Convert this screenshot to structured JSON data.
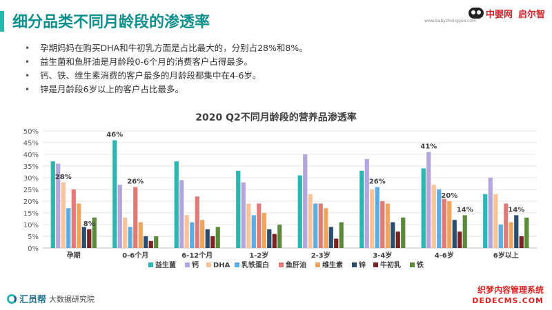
{
  "header": {
    "title": "细分品类不同月龄段的渗透率",
    "logo_a": "中婴网",
    "logo_url": "www.babyzhongguo.com",
    "logo_b": "启尔智"
  },
  "bullets": [
    "孕期妈妈在购买DHA和牛初乳方面是占比最大的，分别占28%和8%。",
    "益生菌和鱼肝油是月龄段0-6个月的消费客户占得最多。",
    "钙、铁、维生素消费的客户最多的月龄段都集中在4-6岁。",
    "锌是月龄段6岁以上的客户占比最多。"
  ],
  "chart_data": {
    "type": "bar",
    "title": "2020 Q2不同月龄段的营养品渗透率",
    "categories": [
      "孕期",
      "0-6个月",
      "6-12个月",
      "1-2岁",
      "2-3岁",
      "3-4岁",
      "4-6岁",
      "6岁以上"
    ],
    "ylim": [
      0,
      50
    ],
    "yticks": [
      "0%",
      "5%",
      "10%",
      "15%",
      "20%",
      "25%",
      "30%",
      "35%",
      "40%",
      "45%",
      "50%"
    ],
    "grid": true,
    "legend": "bottom",
    "series": [
      {
        "name": "益生菌",
        "color": "#2bb6b2",
        "values": [
          37,
          46,
          37,
          33,
          31,
          33,
          34,
          23
        ]
      },
      {
        "name": "钙",
        "color": "#b4a6dc",
        "values": [
          36,
          27,
          29,
          28,
          40,
          38,
          41,
          30
        ]
      },
      {
        "name": "DHA",
        "color": "#f9c49a",
        "values": [
          28,
          13,
          14,
          19,
          23,
          25,
          27,
          23
        ]
      },
      {
        "name": "乳铁蛋白",
        "color": "#5dade2",
        "values": [
          17,
          9,
          11,
          14,
          19,
          26,
          25,
          10
        ]
      },
      {
        "name": "鱼肝油",
        "color": "#e07b78",
        "values": [
          25,
          26,
          22,
          19,
          19,
          20,
          21,
          19
        ]
      },
      {
        "name": "维生素",
        "color": "#f0a45d",
        "values": [
          19,
          11,
          12,
          15,
          17,
          19,
          20,
          11
        ]
      },
      {
        "name": "锌",
        "color": "#2a4d6e",
        "values": [
          9,
          5,
          8,
          8,
          9,
          11,
          12,
          14
        ]
      },
      {
        "name": "牛初乳",
        "color": "#7a2323",
        "values": [
          8,
          3,
          5,
          6,
          4,
          7,
          7,
          5
        ]
      },
      {
        "name": "铁",
        "color": "#5b8a3c",
        "values": [
          13,
          5,
          9,
          10,
          11,
          13,
          14,
          13
        ]
      }
    ],
    "annotations": [
      {
        "category": "孕期",
        "series": "DHA",
        "text": "28%"
      },
      {
        "category": "孕期",
        "series": "牛初乳",
        "text": "8%"
      },
      {
        "category": "0-6个月",
        "series": "益生菌",
        "text": "46%"
      },
      {
        "category": "0-6个月",
        "series": "鱼肝油",
        "text": "26%"
      },
      {
        "category": "3-4岁",
        "series": "乳铁蛋白",
        "text": "26%"
      },
      {
        "category": "4-6岁",
        "series": "钙",
        "text": "41%"
      },
      {
        "category": "4-6岁",
        "series": "维生素",
        "text": "20%"
      },
      {
        "category": "4-6岁",
        "series": "铁",
        "text": "14%"
      },
      {
        "category": "6岁以上",
        "series": "锌",
        "text": "14%"
      }
    ]
  },
  "footer": {
    "brand": "汇员帮",
    "sub": "大数据研究院",
    "watermark_cn": "织梦内容管理系统",
    "watermark_url": "DEDECMS.COM"
  }
}
